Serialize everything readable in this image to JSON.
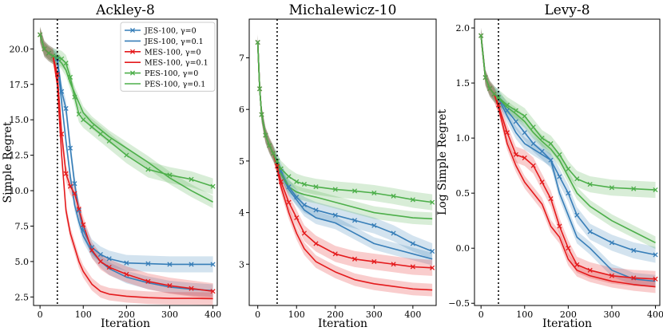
{
  "chart_data": [
    {
      "type": "line",
      "title": "Ackley-8",
      "xlabel": "Iteration",
      "ylabel": "Simple Regret",
      "xlim": [
        -15,
        410
      ],
      "ylim": [
        1.9,
        22.1
      ],
      "xticks": [
        0,
        100,
        200,
        300,
        400
      ],
      "yticks": [
        2.5,
        5.0,
        7.5,
        10.0,
        12.5,
        15.0,
        17.5,
        20.0
      ],
      "ytick_labels": [
        "2.5",
        "5.0",
        "7.5",
        "10.0",
        "12.5",
        "15.0",
        "17.5",
        "20.0"
      ],
      "grid": false,
      "legend": "top-right",
      "vline_x": 40,
      "series": [
        {
          "name": "JES-100, γ=0",
          "color": "#377eb8",
          "marker": "x",
          "x": [
            0,
            10,
            20,
            30,
            40,
            50,
            60,
            70,
            80,
            90,
            100,
            120,
            140,
            160,
            200,
            250,
            300,
            350,
            400
          ],
          "y": [
            21.0,
            20.0,
            19.7,
            19.5,
            19.3,
            17.0,
            15.8,
            13.0,
            10.5,
            8.6,
            7.2,
            6.0,
            5.5,
            5.2,
            4.9,
            4.85,
            4.8,
            4.8,
            4.8
          ]
        },
        {
          "name": "JES-100, γ=0.1",
          "color": "#377eb8",
          "marker": "",
          "x": [
            0,
            10,
            20,
            30,
            40,
            50,
            60,
            70,
            80,
            90,
            100,
            120,
            140,
            160,
            200,
            250,
            300,
            350,
            400
          ],
          "y": [
            21.0,
            20.0,
            19.7,
            19.5,
            19.2,
            16.2,
            13.5,
            11.0,
            9.0,
            7.8,
            6.8,
            5.7,
            5.0,
            4.5,
            3.9,
            3.5,
            3.2,
            3.05,
            2.95
          ]
        },
        {
          "name": "MES-100, γ=0",
          "color": "#e41a1c",
          "marker": "x",
          "x": [
            0,
            10,
            20,
            30,
            40,
            50,
            60,
            70,
            80,
            90,
            100,
            120,
            140,
            160,
            200,
            250,
            300,
            350,
            400
          ],
          "y": [
            21.0,
            20.0,
            19.7,
            19.5,
            18.2,
            14.0,
            11.2,
            10.3,
            9.8,
            8.7,
            7.6,
            5.8,
            5.0,
            4.6,
            4.1,
            3.6,
            3.3,
            3.1,
            2.9
          ]
        },
        {
          "name": "MES-100, γ=0.1",
          "color": "#e41a1c",
          "marker": "",
          "x": [
            0,
            10,
            20,
            30,
            40,
            50,
            60,
            70,
            80,
            90,
            100,
            120,
            140,
            160,
            200,
            250,
            300,
            350,
            400
          ],
          "y": [
            21.0,
            20.0,
            19.7,
            19.5,
            17.5,
            12.5,
            8.6,
            7.0,
            6.0,
            5.0,
            4.3,
            3.4,
            2.9,
            2.7,
            2.55,
            2.45,
            2.4,
            2.4,
            2.38
          ]
        },
        {
          "name": "PES-100, γ=0",
          "color": "#4daf4a",
          "marker": "x",
          "x": [
            0,
            10,
            20,
            30,
            40,
            50,
            60,
            70,
            80,
            90,
            100,
            120,
            140,
            160,
            200,
            250,
            300,
            350,
            400
          ],
          "y": [
            21.0,
            20.0,
            19.7,
            19.5,
            19.4,
            19.3,
            19.0,
            18.0,
            16.6,
            15.4,
            15.0,
            14.5,
            14.0,
            13.5,
            12.5,
            11.5,
            11.1,
            10.8,
            10.3
          ]
        },
        {
          "name": "PES-100, γ=0.1",
          "color": "#4daf4a",
          "marker": "",
          "x": [
            0,
            10,
            20,
            30,
            40,
            50,
            60,
            70,
            80,
            90,
            100,
            120,
            140,
            160,
            200,
            250,
            300,
            350,
            400
          ],
          "y": [
            21.0,
            20.0,
            19.7,
            19.5,
            19.3,
            19.0,
            18.5,
            17.6,
            16.9,
            16.2,
            15.5,
            14.8,
            14.3,
            13.8,
            13.0,
            12.0,
            10.9,
            10.0,
            9.2
          ]
        }
      ]
    },
    {
      "type": "line",
      "title": "Michalewicz-10",
      "xlabel": "Iteration",
      "ylabel": "",
      "xlim": [
        -22,
        460
      ],
      "ylim": [
        2.2,
        7.75
      ],
      "xticks": [
        0,
        100,
        200,
        300,
        400
      ],
      "yticks": [
        3,
        4,
        5,
        6,
        7
      ],
      "ytick_labels": [
        "3",
        "4",
        "5",
        "6",
        "7"
      ],
      "grid": false,
      "legend": "",
      "vline_x": 50,
      "series": [
        {
          "name": "",
          "color": "#377eb8",
          "marker": "x",
          "x": [
            0,
            5,
            10,
            20,
            30,
            40,
            50,
            60,
            80,
            100,
            120,
            150,
            200,
            250,
            300,
            350,
            400,
            450
          ],
          "y": [
            7.3,
            6.4,
            5.9,
            5.5,
            5.3,
            5.15,
            5.0,
            4.8,
            4.5,
            4.3,
            4.15,
            4.05,
            3.95,
            3.85,
            3.75,
            3.6,
            3.4,
            3.25
          ]
        },
        {
          "name": "",
          "color": "#377eb8",
          "marker": "",
          "x": [
            0,
            5,
            10,
            20,
            30,
            40,
            50,
            60,
            80,
            100,
            120,
            150,
            200,
            250,
            300,
            350,
            400,
            450
          ],
          "y": [
            7.3,
            6.4,
            5.9,
            5.5,
            5.3,
            5.15,
            4.95,
            4.75,
            4.45,
            4.25,
            4.05,
            3.9,
            3.8,
            3.6,
            3.4,
            3.3,
            3.2,
            3.1
          ]
        },
        {
          "name": "",
          "color": "#e41a1c",
          "marker": "x",
          "x": [
            0,
            5,
            10,
            20,
            30,
            40,
            50,
            60,
            80,
            100,
            120,
            150,
            200,
            250,
            300,
            350,
            400,
            450
          ],
          "y": [
            7.3,
            6.4,
            5.9,
            5.5,
            5.3,
            5.15,
            4.9,
            4.6,
            4.2,
            3.9,
            3.6,
            3.4,
            3.2,
            3.1,
            3.05,
            3.0,
            2.95,
            2.93
          ]
        },
        {
          "name": "",
          "color": "#e41a1c",
          "marker": "",
          "x": [
            0,
            5,
            10,
            20,
            30,
            40,
            50,
            60,
            80,
            100,
            120,
            150,
            200,
            250,
            300,
            350,
            400,
            450
          ],
          "y": [
            7.3,
            6.4,
            5.9,
            5.5,
            5.3,
            5.15,
            4.85,
            4.5,
            4.0,
            3.6,
            3.3,
            3.05,
            2.85,
            2.7,
            2.62,
            2.57,
            2.52,
            2.5
          ]
        },
        {
          "name": "",
          "color": "#4daf4a",
          "marker": "x",
          "x": [
            0,
            5,
            10,
            20,
            30,
            40,
            50,
            60,
            80,
            100,
            120,
            150,
            200,
            250,
            300,
            350,
            400,
            450
          ],
          "y": [
            7.3,
            6.4,
            5.9,
            5.5,
            5.3,
            5.15,
            5.0,
            4.85,
            4.7,
            4.6,
            4.55,
            4.5,
            4.45,
            4.42,
            4.38,
            4.32,
            4.25,
            4.2
          ]
        },
        {
          "name": "",
          "color": "#4daf4a",
          "marker": "",
          "x": [
            0,
            5,
            10,
            20,
            30,
            40,
            50,
            60,
            80,
            100,
            120,
            150,
            200,
            250,
            300,
            350,
            400,
            450
          ],
          "y": [
            7.3,
            6.4,
            5.9,
            5.5,
            5.3,
            5.15,
            4.95,
            4.75,
            4.5,
            4.4,
            4.35,
            4.3,
            4.2,
            4.1,
            4.0,
            3.95,
            3.9,
            3.88
          ]
        }
      ]
    },
    {
      "type": "line",
      "title": "Levy-8",
      "xlabel": "Iteration",
      "ylabel": "Log Simple Regret",
      "xlim": [
        -15,
        410
      ],
      "ylim": [
        -0.52,
        2.08
      ],
      "xticks": [
        0,
        100,
        200,
        300,
        400
      ],
      "yticks": [
        -0.5,
        0.0,
        0.5,
        1.0,
        1.5,
        2.0
      ],
      "ytick_labels": [
        "−0.5",
        "0.0",
        "0.5",
        "1.0",
        "1.5",
        "2.0"
      ],
      "grid": false,
      "legend": "",
      "vline_x": 40,
      "series": [
        {
          "name": "",
          "color": "#377eb8",
          "marker": "x",
          "x": [
            0,
            10,
            20,
            30,
            40,
            60,
            80,
            100,
            120,
            140,
            160,
            180,
            200,
            220,
            250,
            300,
            350,
            400
          ],
          "y": [
            1.93,
            1.55,
            1.45,
            1.4,
            1.37,
            1.25,
            1.15,
            1.05,
            0.95,
            0.88,
            0.8,
            0.65,
            0.5,
            0.3,
            0.15,
            0.05,
            -0.02,
            -0.06
          ]
        },
        {
          "name": "",
          "color": "#377eb8",
          "marker": "",
          "x": [
            0,
            10,
            20,
            30,
            40,
            60,
            80,
            100,
            120,
            140,
            160,
            180,
            200,
            220,
            250,
            300,
            350,
            400
          ],
          "y": [
            1.93,
            1.55,
            1.45,
            1.4,
            1.36,
            1.2,
            1.05,
            0.95,
            0.9,
            0.85,
            0.8,
            0.5,
            0.3,
            0.1,
            0.0,
            -0.2,
            -0.28,
            -0.3
          ]
        },
        {
          "name": "",
          "color": "#e41a1c",
          "marker": "x",
          "x": [
            0,
            10,
            20,
            30,
            40,
            60,
            80,
            100,
            120,
            140,
            160,
            180,
            200,
            220,
            250,
            300,
            350,
            400
          ],
          "y": [
            1.93,
            1.55,
            1.45,
            1.4,
            1.3,
            1.05,
            0.85,
            0.82,
            0.75,
            0.6,
            0.45,
            0.2,
            0.0,
            -0.15,
            -0.2,
            -0.25,
            -0.27,
            -0.28
          ]
        },
        {
          "name": "",
          "color": "#e41a1c",
          "marker": "",
          "x": [
            0,
            10,
            20,
            30,
            40,
            60,
            80,
            100,
            120,
            140,
            160,
            180,
            200,
            220,
            250,
            300,
            350,
            400
          ],
          "y": [
            1.93,
            1.55,
            1.45,
            1.4,
            1.28,
            0.95,
            0.75,
            0.6,
            0.5,
            0.4,
            0.2,
            0.1,
            -0.1,
            -0.2,
            -0.25,
            -0.3,
            -0.33,
            -0.35
          ]
        },
        {
          "name": "",
          "color": "#4daf4a",
          "marker": "x",
          "x": [
            0,
            10,
            20,
            30,
            40,
            60,
            80,
            100,
            120,
            140,
            160,
            180,
            200,
            220,
            250,
            300,
            350,
            400
          ],
          "y": [
            1.93,
            1.55,
            1.45,
            1.4,
            1.37,
            1.3,
            1.25,
            1.2,
            1.1,
            1.0,
            0.95,
            0.85,
            0.72,
            0.63,
            0.58,
            0.55,
            0.54,
            0.53
          ]
        },
        {
          "name": "",
          "color": "#4daf4a",
          "marker": "",
          "x": [
            0,
            10,
            20,
            30,
            40,
            60,
            80,
            100,
            120,
            140,
            160,
            180,
            200,
            220,
            250,
            300,
            350,
            400
          ],
          "y": [
            1.93,
            1.55,
            1.45,
            1.4,
            1.36,
            1.28,
            1.22,
            1.15,
            1.05,
            0.97,
            0.9,
            0.8,
            0.65,
            0.5,
            0.38,
            0.25,
            0.15,
            0.05
          ]
        }
      ]
    }
  ]
}
